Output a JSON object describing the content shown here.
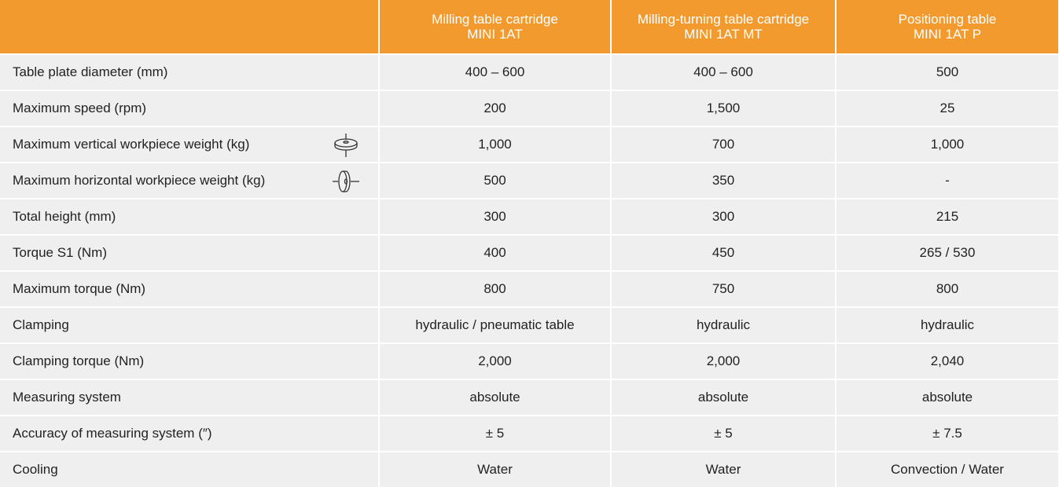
{
  "table": {
    "columns": [
      [
        "Milling table cartridge",
        "MINI 1AT"
      ],
      [
        "Milling-turning table cartridge",
        "MINI 1AT MT"
      ],
      [
        "Positioning table",
        "MINI 1AT P"
      ]
    ],
    "rows": [
      [
        "Table plate diameter (mm)",
        "400 – 600",
        "400 – 600",
        "500"
      ],
      [
        "Maximum speed (rpm)",
        "200",
        "1,500",
        "25"
      ],
      [
        "Maximum vertical workpiece weight (kg)",
        "1,000",
        "700",
        "1,000"
      ],
      [
        "Maximum horizontal workpiece weight (kg)",
        "500",
        "350",
        "-"
      ],
      [
        "Total height (mm)",
        "300",
        "300",
        "215"
      ],
      [
        "Torque S1 (Nm)",
        "400",
        "450",
        "265 / 530"
      ],
      [
        "Maximum torque (Nm)",
        "800",
        "750",
        "800"
      ],
      [
        "Clamping",
        "hydraulic / pneumatic table",
        "hydraulic",
        "hydraulic"
      ],
      [
        "Clamping torque (Nm)",
        "2,000",
        "2,000",
        "2,040"
      ],
      [
        "Measuring system",
        "absolute",
        "absolute",
        "absolute"
      ],
      [
        "Accuracy of measuring system (″)",
        "± 5",
        "± 5",
        "± 7.5"
      ],
      [
        "Cooling",
        "Water",
        "Water",
        "Convection / Water"
      ]
    ]
  }
}
